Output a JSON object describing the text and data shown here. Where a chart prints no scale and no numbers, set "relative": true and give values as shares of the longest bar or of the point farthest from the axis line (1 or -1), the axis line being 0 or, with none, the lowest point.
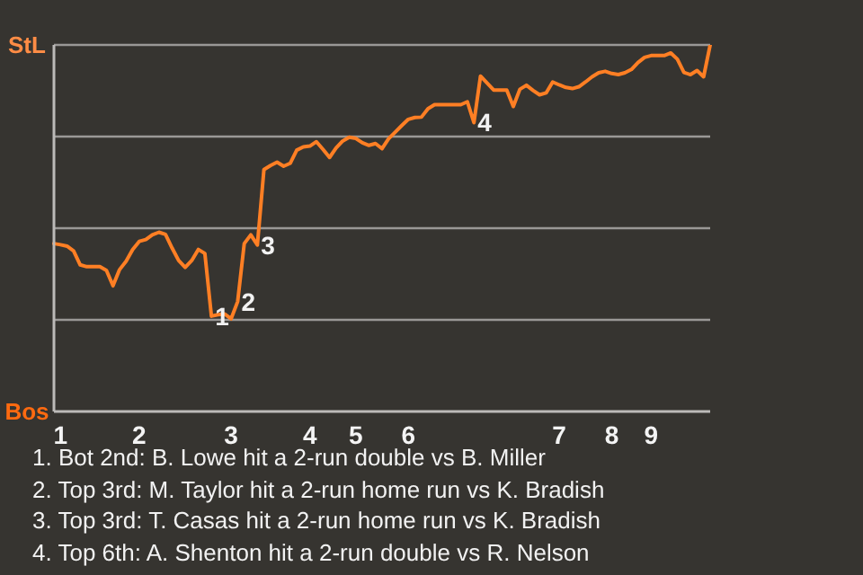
{
  "chart_data": {
    "type": "line",
    "relative": true,
    "categories": [
      null,
      "1",
      null,
      null,
      null,
      null,
      null,
      null,
      null,
      null,
      null,
      null,
      null,
      "2",
      null,
      null,
      null,
      null,
      null,
      null,
      null,
      null,
      null,
      null,
      null,
      null,
      null,
      "3",
      null,
      null,
      null,
      null,
      null,
      null,
      null,
      null,
      null,
      null,
      null,
      "4",
      null,
      null,
      null,
      null,
      null,
      null,
      "5",
      null,
      null,
      null,
      null,
      null,
      null,
      null,
      "6",
      null,
      null,
      null,
      null,
      null,
      null,
      null,
      null,
      null,
      null,
      null,
      null,
      null,
      null,
      null,
      null,
      null,
      null,
      null,
      null,
      null,
      null,
      "7",
      null,
      null,
      null,
      null,
      null,
      null,
      null,
      "8",
      null,
      null,
      null,
      null,
      null,
      "9",
      null,
      null,
      null,
      null,
      null,
      null,
      null,
      null,
      null
    ],
    "series": [
      {
        "color": "#ff7f24",
        "values": [
          0.458,
          0.455,
          0.451,
          0.438,
          0.4,
          0.395,
          0.395,
          0.395,
          0.385,
          0.343,
          0.387,
          0.41,
          0.442,
          0.464,
          0.469,
          0.482,
          0.489,
          0.483,
          0.446,
          0.412,
          0.393,
          0.412,
          0.442,
          0.431,
          0.26,
          0.264,
          0.266,
          0.253,
          0.3,
          0.458,
          0.482,
          0.454,
          0.66,
          0.671,
          0.68,
          0.669,
          0.677,
          0.713,
          0.722,
          0.724,
          0.736,
          0.715,
          0.693,
          0.719,
          0.738,
          0.748,
          0.745,
          0.733,
          0.726,
          0.731,
          0.717,
          0.744,
          0.762,
          0.78,
          0.797,
          0.802,
          0.803,
          0.826,
          0.837,
          0.837,
          0.837,
          0.837,
          0.837,
          0.845,
          0.788,
          0.915,
          0.896,
          0.877,
          0.877,
          0.877,
          0.832,
          0.879,
          0.89,
          0.876,
          0.864,
          0.869,
          0.899,
          0.891,
          0.884,
          0.881,
          0.886,
          0.899,
          0.913,
          0.924,
          0.928,
          0.922,
          0.919,
          0.924,
          0.933,
          0.952,
          0.966,
          0.971,
          0.971,
          0.971,
          0.978,
          0.961,
          0.925,
          0.919,
          0.93,
          0.913,
          1
        ]
      }
    ],
    "grid": "y",
    "marker": "none",
    "line_style": "solid",
    "annotations": [
      "StL",
      "Bos",
      {
        "text": "1",
        "y": 0.26
      },
      {
        "text": "2",
        "y": 0.3
      },
      {
        "text": "3",
        "y": 0.454
      },
      {
        "text": "4",
        "y": 0.788
      },
      "1. Bot 2nd: B. Lowe hit a 2-run double vs B. Miller",
      "2. Top 3rd: M. Taylor hit a 2-run home run vs K. Bradish",
      "3. Top 3rd: T. Casas hit a 2-run home run vs K. Bradish",
      "4. Top 6th: A. Shenton hit a 2-run double vs R. Nelson"
    ]
  }
}
